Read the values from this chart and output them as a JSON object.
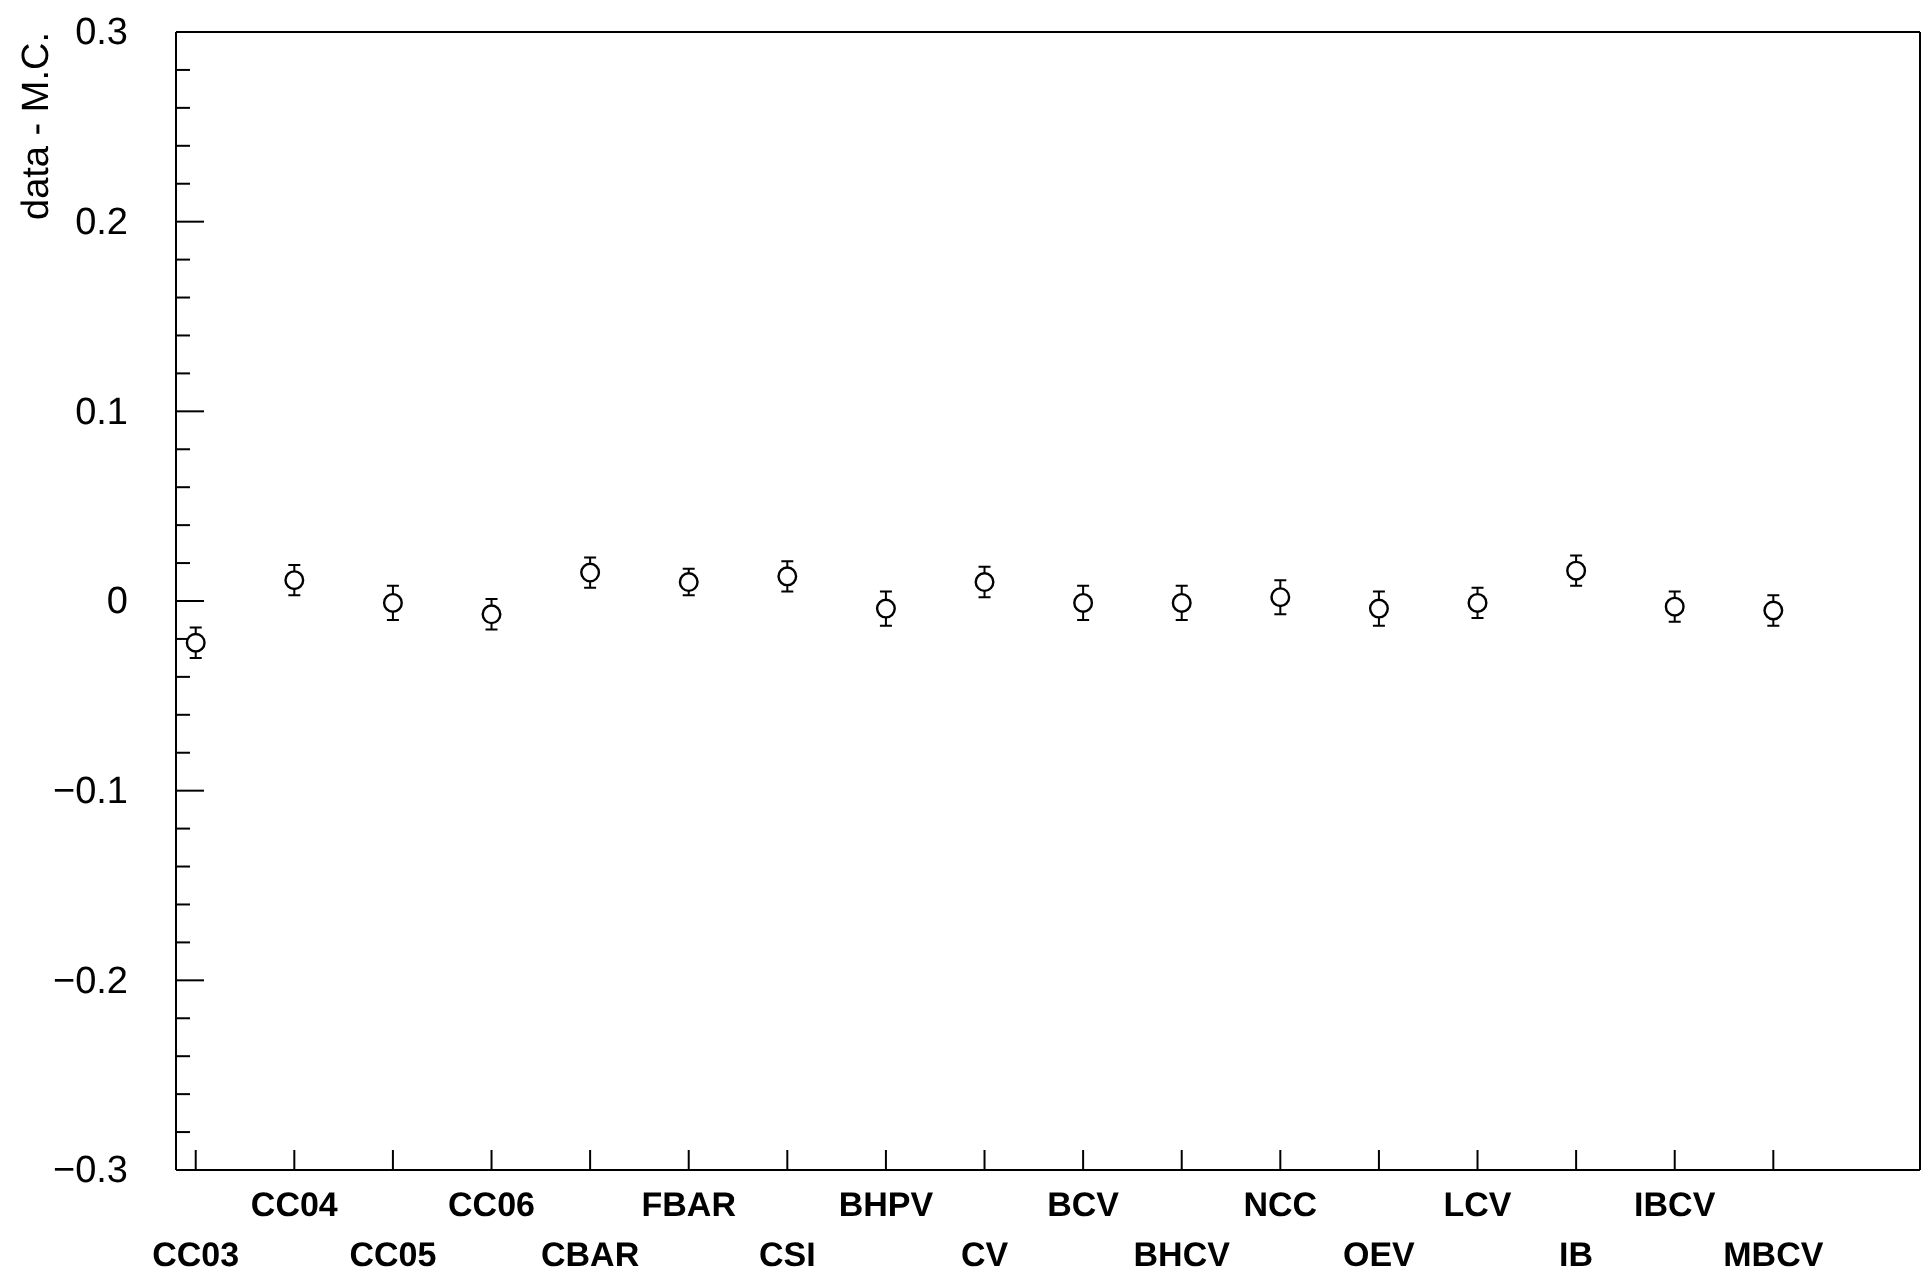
{
  "chart_data": {
    "type": "scatter",
    "ylabel": "data - M.C.",
    "categories": [
      "CC03",
      "CC04",
      "CC05",
      "CC06",
      "CBAR",
      "FBAR",
      "CSI",
      "BHPV",
      "CV",
      "BCV",
      "BHCV",
      "NCC",
      "OEV",
      "LCV",
      "IB",
      "IBCV",
      "MBCV"
    ],
    "series": [
      {
        "color": "#000000",
        "values": [
          -0.022,
          0.011,
          -0.001,
          -0.007,
          0.015,
          0.01,
          0.013,
          -0.004,
          0.01,
          -0.001,
          -0.001,
          0.002,
          -0.004,
          -0.001,
          0.016,
          -0.003,
          -0.005
        ],
        "errors": [
          0.008,
          0.008,
          0.009,
          0.008,
          0.008,
          0.007,
          0.008,
          0.009,
          0.008,
          0.009,
          0.009,
          0.009,
          0.009,
          0.008,
          0.008,
          0.008,
          0.008
        ]
      }
    ],
    "ylim": [
      -0.3,
      0.3
    ],
    "yticks": [
      {
        "value": -0.3,
        "label": "−0.3"
      },
      {
        "value": -0.2,
        "label": "−0.2"
      },
      {
        "value": -0.1,
        "label": "−0.1"
      },
      0,
      0.1,
      0.2,
      0.3
    ],
    "marker": "circle"
  }
}
